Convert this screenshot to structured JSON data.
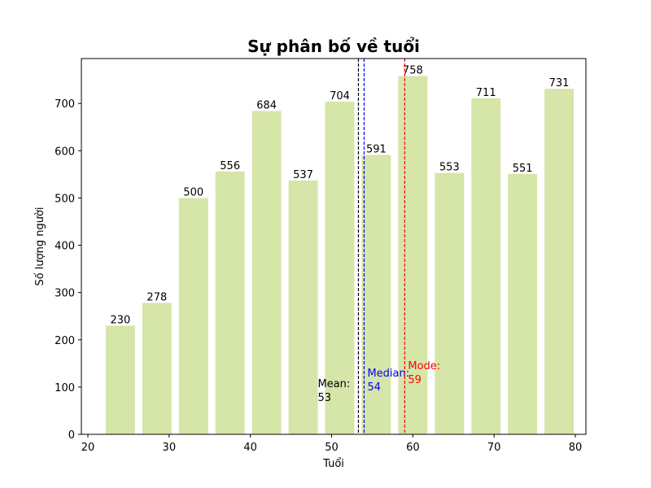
{
  "chart_data": {
    "type": "bar",
    "title": "Sự phân bố về tuổi",
    "xlabel": "Tuổi",
    "ylabel": "Số lượng người",
    "bar_color": "#d6e5a8",
    "bin_width": 3.6,
    "x": [
      24,
      28.5,
      33,
      37.5,
      42,
      46.5,
      51,
      55.5,
      60,
      64.5,
      69,
      73.5,
      78
    ],
    "values": [
      230,
      278,
      500,
      556,
      684,
      537,
      704,
      591,
      758,
      553,
      711,
      551,
      731
    ],
    "xlim": [
      19.2,
      81.3
    ],
    "ylim": [
      0,
      795
    ],
    "xticks": [
      20,
      30,
      40,
      50,
      60,
      70,
      80
    ],
    "yticks": [
      0,
      100,
      200,
      300,
      400,
      500,
      600,
      700
    ],
    "grid": false,
    "stat_lines": [
      {
        "name": "Mean",
        "value": 53.3,
        "label": "Mean:",
        "label_value": "53",
        "color": "#000000",
        "label_y": 100
      },
      {
        "name": "Median",
        "value": 54,
        "label": "Median:",
        "label_value": "54",
        "color": "#0000ff",
        "label_y": 122
      },
      {
        "name": "Mode",
        "value": 59,
        "label": "Mode:",
        "label_value": "59",
        "color": "#ff0000",
        "label_y": 138
      }
    ]
  }
}
